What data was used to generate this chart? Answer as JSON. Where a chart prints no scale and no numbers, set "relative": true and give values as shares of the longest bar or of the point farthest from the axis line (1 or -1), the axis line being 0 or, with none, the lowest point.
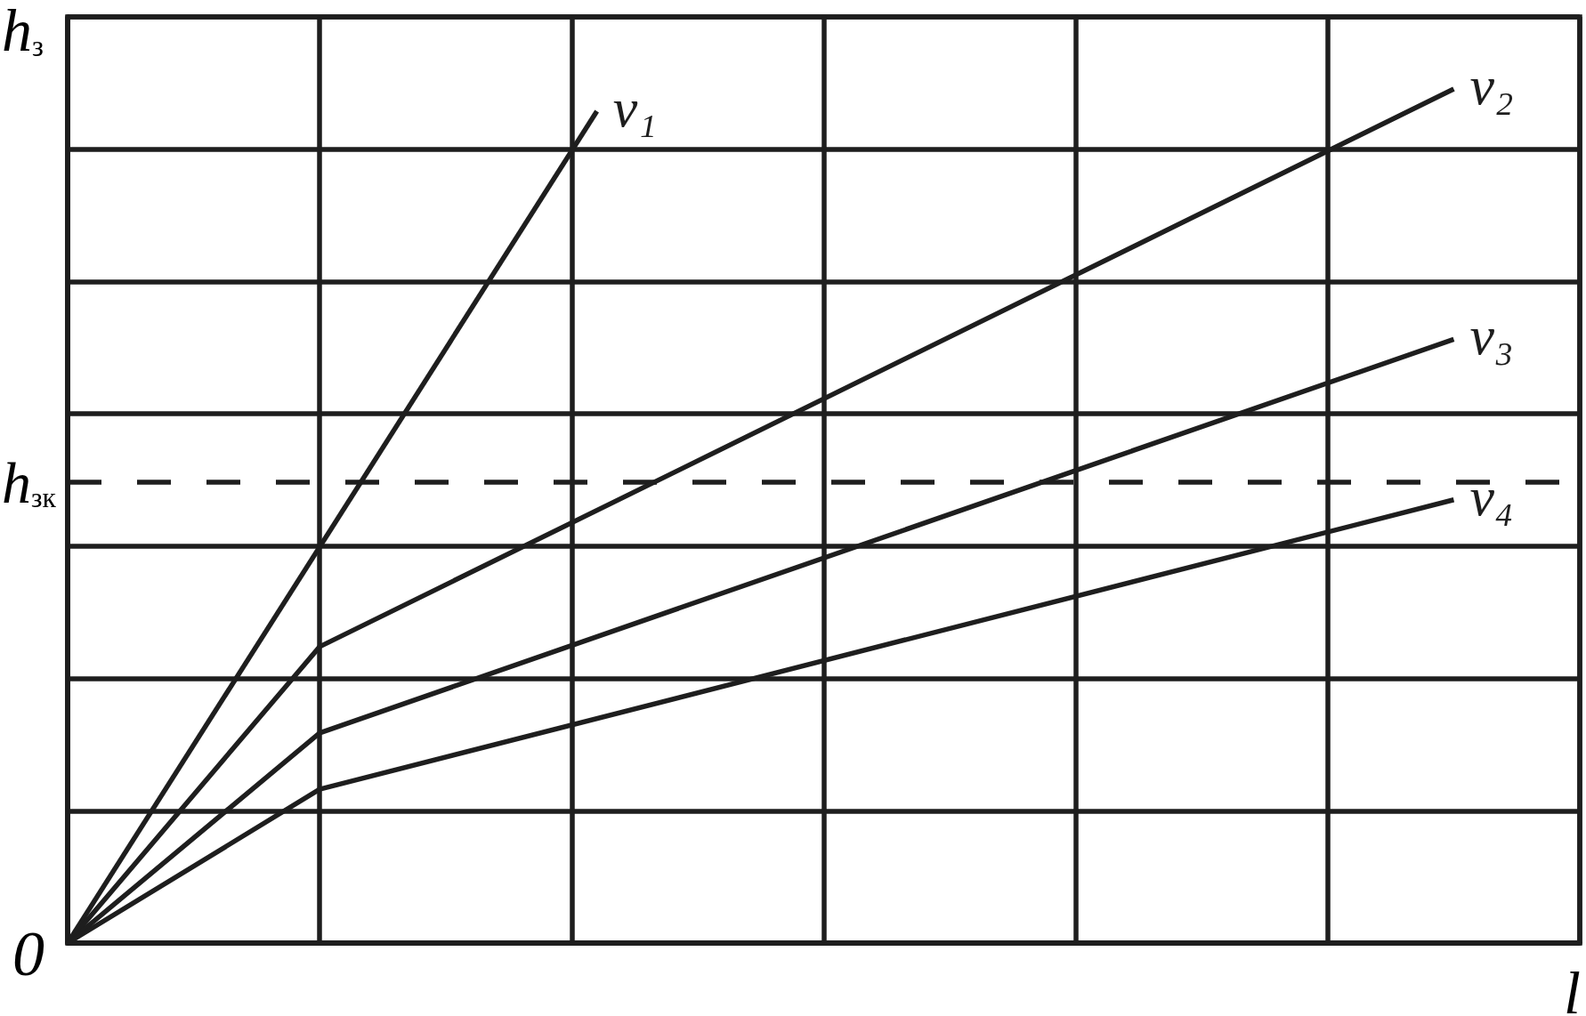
{
  "chart_data": {
    "type": "line",
    "xlabel": "l",
    "ylabel": "h$_{з}$",
    "relative": true,
    "grid": true,
    "line_style": "solid",
    "categories": [
      null,
      null,
      null,
      null,
      null,
      null,
      null,
      null,
      null,
      null,
      null,
      null,
      null,
      null,
      null,
      null,
      null,
      null,
      null,
      null,
      null,
      null,
      null,
      null,
      null,
      null,
      null,
      null,
      null,
      null,
      null,
      null,
      null,
      null,
      null,
      null,
      null,
      null,
      null,
      null,
      null,
      null,
      null,
      null,
      null,
      null,
      null,
      null,
      null,
      null,
      null,
      null,
      null,
      null,
      null,
      null,
      null,
      null,
      null,
      null,
      null
    ],
    "series": [
      {
        "name": "v₁",
        "color": "#1e1e1e",
        "values": [
          0,
          null,
          null,
          null,
          null,
          null,
          null,
          null,
          null,
          null,
          null,
          null,
          null,
          null,
          null,
          null,
          null,
          null,
          null,
          null,
          null,
          0.974,
          null,
          null,
          null,
          null,
          null,
          null,
          null,
          null,
          null,
          null,
          null,
          null,
          null,
          null,
          null,
          null,
          null,
          null,
          null,
          null,
          null,
          null,
          null,
          null,
          null,
          null,
          null,
          null,
          null,
          null,
          null,
          null,
          null,
          null,
          null,
          null,
          null,
          null,
          null
        ]
      },
      {
        "name": "v₂",
        "color": "#1e1e1e",
        "values": [
          0,
          null,
          null,
          null,
          null,
          null,
          null,
          null,
          null,
          null,
          0.347,
          null,
          null,
          null,
          null,
          null,
          null,
          null,
          null,
          null,
          null,
          null,
          null,
          null,
          null,
          null,
          null,
          null,
          null,
          null,
          null,
          null,
          null,
          null,
          null,
          null,
          null,
          null,
          null,
          null,
          null,
          null,
          null,
          null,
          null,
          null,
          null,
          null,
          null,
          null,
          null,
          null,
          null,
          null,
          null,
          1,
          null,
          null,
          null,
          null,
          null
        ]
      },
      {
        "name": "v₃",
        "color": "#1e1e1e",
        "values": [
          0,
          null,
          null,
          null,
          null,
          null,
          null,
          null,
          null,
          null,
          0.246,
          null,
          null,
          null,
          null,
          null,
          null,
          null,
          null,
          null,
          null,
          null,
          null,
          null,
          null,
          null,
          null,
          null,
          null,
          null,
          null,
          null,
          null,
          null,
          null,
          null,
          null,
          null,
          null,
          null,
          null,
          null,
          null,
          null,
          null,
          null,
          null,
          null,
          null,
          null,
          null,
          null,
          null,
          null,
          null,
          0.707,
          null,
          null,
          null,
          null,
          null
        ]
      },
      {
        "name": "v₄",
        "color": "#1e1e1e",
        "values": [
          0,
          null,
          null,
          null,
          null,
          null,
          null,
          null,
          null,
          null,
          0.18,
          null,
          null,
          null,
          null,
          null,
          null,
          null,
          null,
          null,
          null,
          null,
          null,
          null,
          null,
          null,
          null,
          null,
          null,
          null,
          null,
          null,
          null,
          null,
          null,
          null,
          null,
          null,
          null,
          null,
          null,
          null,
          null,
          null,
          null,
          null,
          null,
          null,
          null,
          null,
          null,
          null,
          null,
          null,
          null,
          0.519,
          null,
          null,
          null,
          null,
          null
        ]
      }
    ],
    "ref_lines": [
      {
        "axis": "y",
        "value": 0.538,
        "label": "h$_{зк}$",
        "color": "#1e1e1e",
        "line_style": "dashed"
      }
    ],
    "annotations": [
      "0"
    ]
  }
}
